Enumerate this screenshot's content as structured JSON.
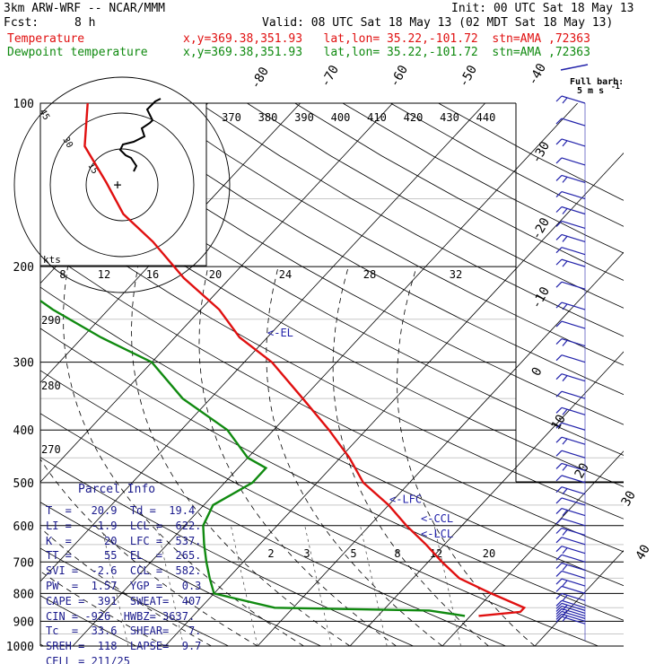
{
  "header": {
    "model_line": "3km ARW-WRF -- NCAR/MMM",
    "init_line": "Init: 00 UTC Sat 18 May 13",
    "fcst_label": "Fcst:",
    "fcst_value": "8 h",
    "valid_line": "Valid: 08 UTC Sat 18 May 13 (02 MDT Sat 18 May 13)",
    "temp_label": "Temperature",
    "temp_info": "x,y=369.38,351.93   lat,lon= 35.22,-101.72  stn=AMA ,72363",
    "dew_label": "Dewpoint temperature",
    "dew_info": "x,y=369.38,351.93   lat,lon= 35.22,-101.72  stn=AMA ,72363",
    "barb_legend_1": "Full barb:",
    "barb_legend_2": "5 m s",
    "barb_legend_unit": "-1"
  },
  "colors": {
    "temperature": "#e01010",
    "dewpoint": "#108a10",
    "parcel_text": "#1a1a8c",
    "barbs": "#2222aa",
    "grid": "#000000"
  },
  "chart_data": {
    "type": "line",
    "diagram": "skew-T log-p",
    "pressure_ticks": [
      "100",
      "200",
      "300",
      "400",
      "500",
      "600",
      "700",
      "800",
      "900",
      "1000"
    ],
    "isotherm_labels_top": [
      "-80",
      "-70",
      "-60",
      "-50",
      "-40"
    ],
    "isotherm_labels_right": [
      "-30",
      "-20",
      "-10",
      "0",
      "10",
      "20",
      "30",
      "40"
    ],
    "theta_e_labels": [
      "370",
      "380",
      "390",
      "400",
      "410",
      "420",
      "430",
      "440"
    ],
    "mixing_ratio_labels": [
      "2",
      "3",
      "5",
      "8",
      "12",
      "20"
    ],
    "dry_adiabat_labels": [
      "290",
      "280",
      "270"
    ],
    "hodograph": {
      "rings": [
        "15",
        "30",
        "45"
      ],
      "units": "kts",
      "speed_labels": [
        "8",
        "12",
        "16",
        "20",
        "24",
        "28",
        "32"
      ],
      "trace": [
        [
          0,
          3
        ],
        [
          1,
          5
        ],
        [
          -1,
          8
        ],
        [
          -3,
          9
        ],
        [
          -5,
          11
        ],
        [
          -4,
          13
        ],
        [
          0,
          14
        ],
        [
          4,
          16
        ],
        [
          3,
          19
        ],
        [
          6,
          21
        ],
        [
          7,
          22
        ],
        [
          5,
          26
        ],
        [
          8,
          29
        ],
        [
          10,
          30
        ]
      ]
    },
    "series": [
      {
        "name": "Temperature",
        "color": "#e01010",
        "pressure": [
          880,
          865,
          850,
          800,
          750,
          700,
          650,
          600,
          550,
          500,
          450,
          400,
          350,
          300,
          270,
          240,
          210,
          180,
          160,
          140,
          120,
          100
        ],
        "temperature": [
          20.9,
          25,
          25,
          20,
          15,
          11.5,
          8,
          4,
          0,
          -5,
          -9,
          -14,
          -20,
          -27,
          -33,
          -38,
          -45,
          -52,
          -58,
          -63,
          -69,
          -73
        ]
      },
      {
        "name": "Dewpoint temperature",
        "color": "#108a10",
        "pressure": [
          880,
          860,
          850,
          800,
          750,
          700,
          650,
          600,
          550,
          500,
          470,
          450,
          400,
          350,
          300,
          270,
          240,
          210,
          180,
          160,
          140,
          120,
          100
        ],
        "temperature": [
          19.4,
          15,
          -2,
          -10,
          -12,
          -14,
          -16,
          -18,
          -19,
          -17,
          -17,
          -20,
          -25,
          -33,
          -40,
          -48,
          -56,
          -64,
          -73,
          -82,
          -88,
          -92,
          -96
        ]
      }
    ],
    "annotations": [
      {
        "label": "<-EL",
        "pressure": 265
      },
      {
        "label": "<-LFC",
        "pressure": 537
      },
      {
        "label": "<-CCL",
        "pressure": 582
      },
      {
        "label": "<-LCL",
        "pressure": 622
      }
    ],
    "wind_barbs_hpa": [
      100,
      110,
      120,
      130,
      140,
      150,
      160,
      170,
      180,
      190,
      200,
      220,
      240,
      260,
      280,
      300,
      325,
      350,
      375,
      400,
      425,
      450,
      475,
      500,
      525,
      550,
      575,
      600,
      625,
      650,
      675,
      700,
      725,
      750,
      775,
      800,
      825,
      850,
      860,
      870,
      880,
      890,
      900,
      910
    ]
  },
  "parcel_info": {
    "title": "Parcel Info",
    "rows": [
      "T  =   20.9  Td =  19.4",
      "LI =   -1.9  LCL =  622.",
      "K  =     20  LFC =  537.",
      "TT =     55  EL  =  265.",
      "SVI =  -2.6  CCL =  582.",
      "PW  =  1.57  YGP =   0.3",
      "CAPE =  391  SWEAT=  407",
      "CIN = -926  HWBZ= 3637.",
      "Tc  =  33.6  SHEAR=   7.",
      "SREH =  118  LAPSE=  9.7",
      "CELL = 211/25"
    ]
  }
}
